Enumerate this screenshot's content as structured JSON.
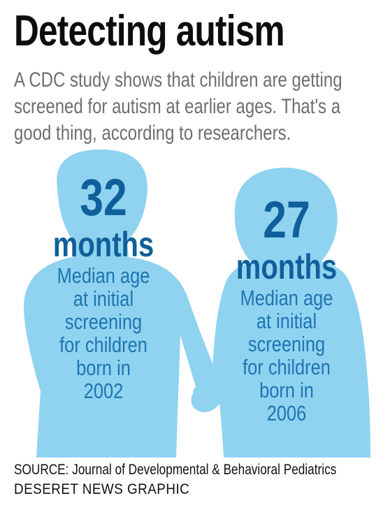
{
  "header": {
    "title": "Detecting autism",
    "subtitle_lines": [
      "A CDC study shows that children are getting",
      "screened for autism at earlier ages. That's a",
      "good thing, according to researchers."
    ]
  },
  "chart_data": {
    "type": "table",
    "title": "Detecting autism",
    "items": [
      {
        "value": 32,
        "value_label": "32",
        "unit": "months",
        "description": "Median age\nat initial\nscreening\nfor children\nborn in\n2002",
        "birth_year": 2002
      },
      {
        "value": 27,
        "value_label": "27",
        "unit": "months",
        "description": "Median age\nat initial\nscreening\nfor children\nborn in\n2006",
        "birth_year": 2006
      }
    ]
  },
  "footer": {
    "source": "SOURCE:  Journal of Developmental & Behavioral Pediatrics",
    "credit": "DESERET NEWS GRAPHIC"
  },
  "colors": {
    "silhouette": "#8fd3f0",
    "number": "#0f5f9b",
    "text": "#1f74b2",
    "subtitle": "#6e6e6e"
  }
}
